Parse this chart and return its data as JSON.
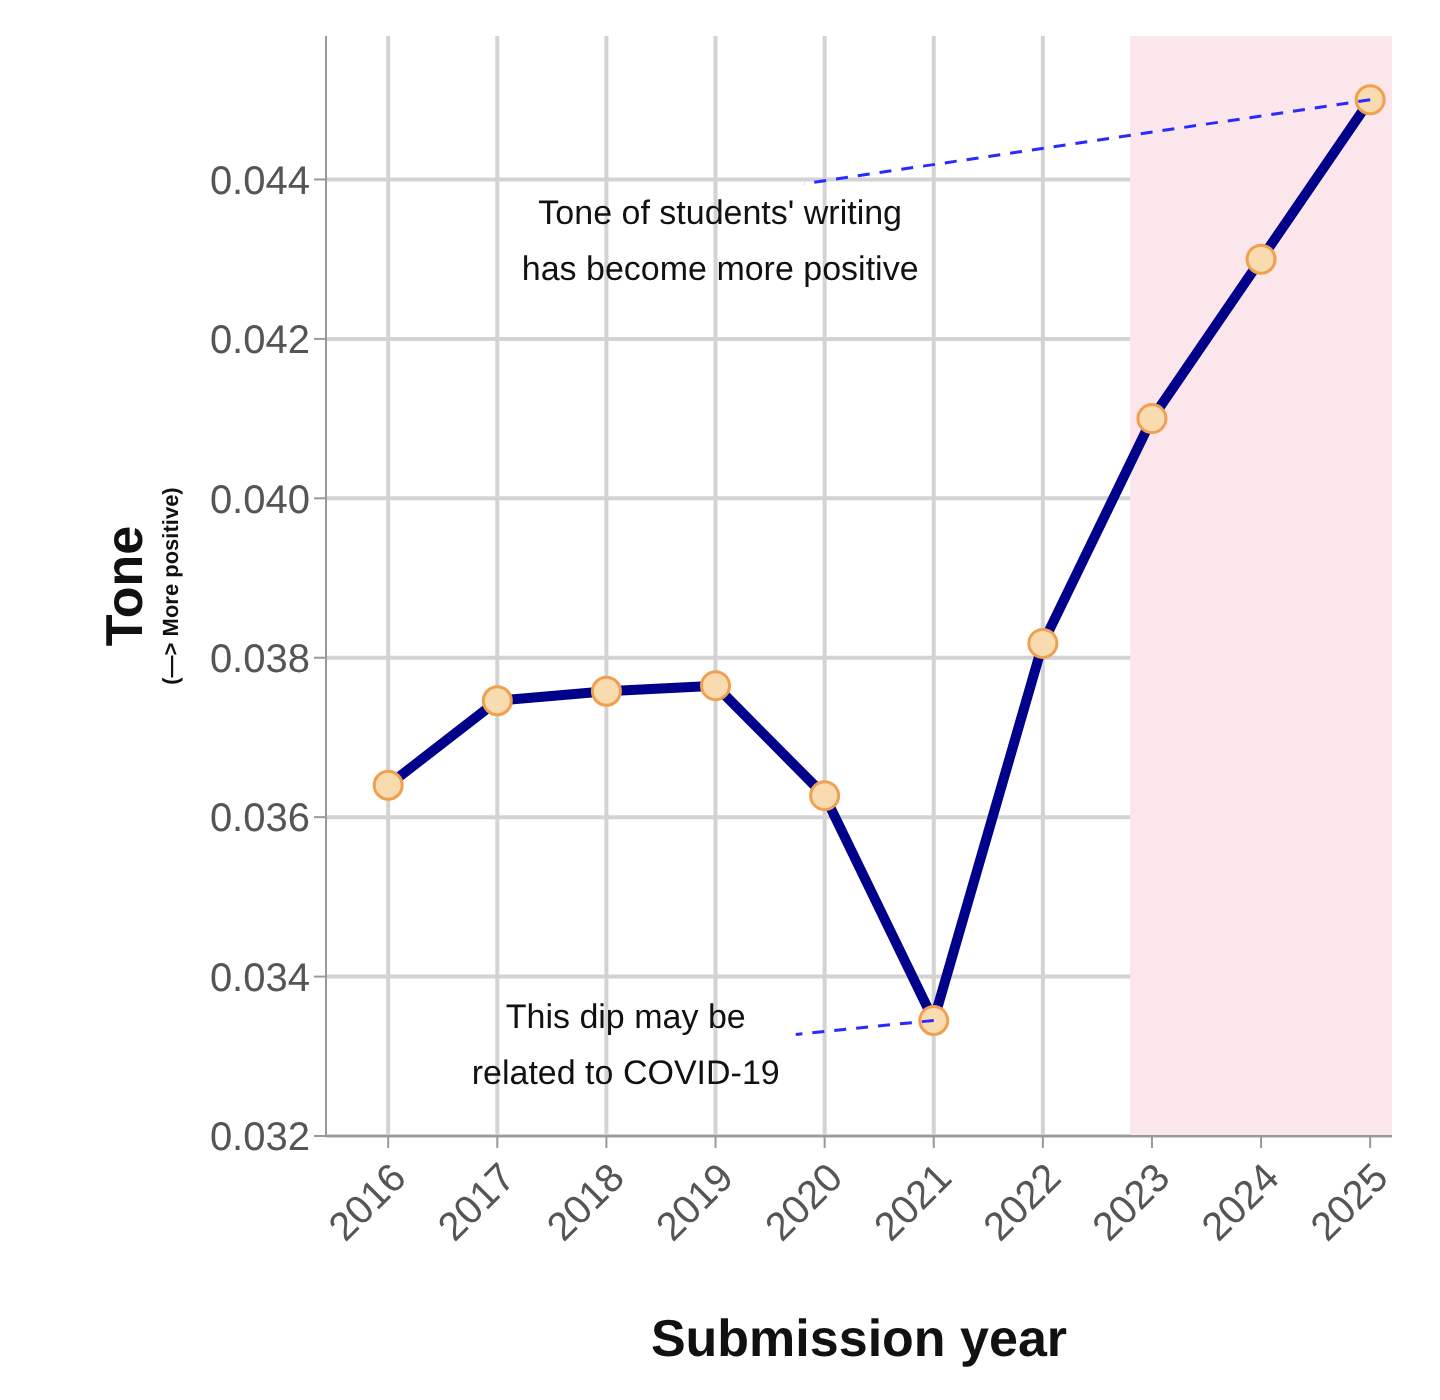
{
  "chart_data": {
    "type": "line",
    "xlabel": "Submission year",
    "ylabel": "Tone\n(—> More positive)",
    "x": [
      2016,
      2017,
      2018,
      2019,
      2020,
      2021,
      2022,
      2023,
      2024,
      2025
    ],
    "series": [
      {
        "color": "#00008b",
        "values": [
          0.0364,
          0.03746,
          0.03758,
          0.03765,
          0.03627,
          0.03345,
          0.03818,
          0.041,
          0.043,
          0.045
        ]
      }
    ],
    "xlim": [
      2015.43,
      2025.2
    ],
    "xticks": [
      2016,
      2017,
      2018,
      2019,
      2020,
      2021,
      2022,
      2023,
      2024,
      2025
    ],
    "ylim": [
      0.032,
      0.0458
    ],
    "yticks": [
      0.032,
      0.034,
      0.036,
      0.038,
      {
        "value": 0.04,
        "label": "0.040"
      },
      0.042,
      0.044
    ],
    "grid": true,
    "marker": "circle",
    "line_style": "solid",
    "bands": [
      {
        "axis": "x",
        "from": 2022.8,
        "to": 2025.2,
        "color": "#fbe6ec"
      }
    ],
    "annotations": [
      {
        "text": "Tone of students' writing has become more positive",
        "x": 2025,
        "y": 0.045
      },
      {
        "text": "This dip may be related to COVID-19",
        "x": 2021,
        "y": 0.03345
      }
    ]
  }
}
